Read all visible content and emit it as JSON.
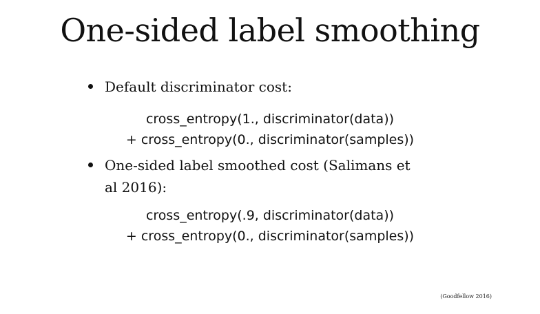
{
  "title": "One-sided label smoothing",
  "bullets": [
    {
      "text": "Default discriminator cost:",
      "code_lines": [
        "cross_entropy(1., discriminator(data))",
        "+ cross_entropy(0., discriminator(samples))"
      ]
    },
    {
      "text": "One-sided label smoothed cost (Salimans et al 2016):",
      "code_lines": [
        "cross_entropy(.9, discriminator(data))",
        "+ cross_entropy(0., discriminator(samples))"
      ]
    }
  ],
  "citation": "(Goodfellow 2016)"
}
